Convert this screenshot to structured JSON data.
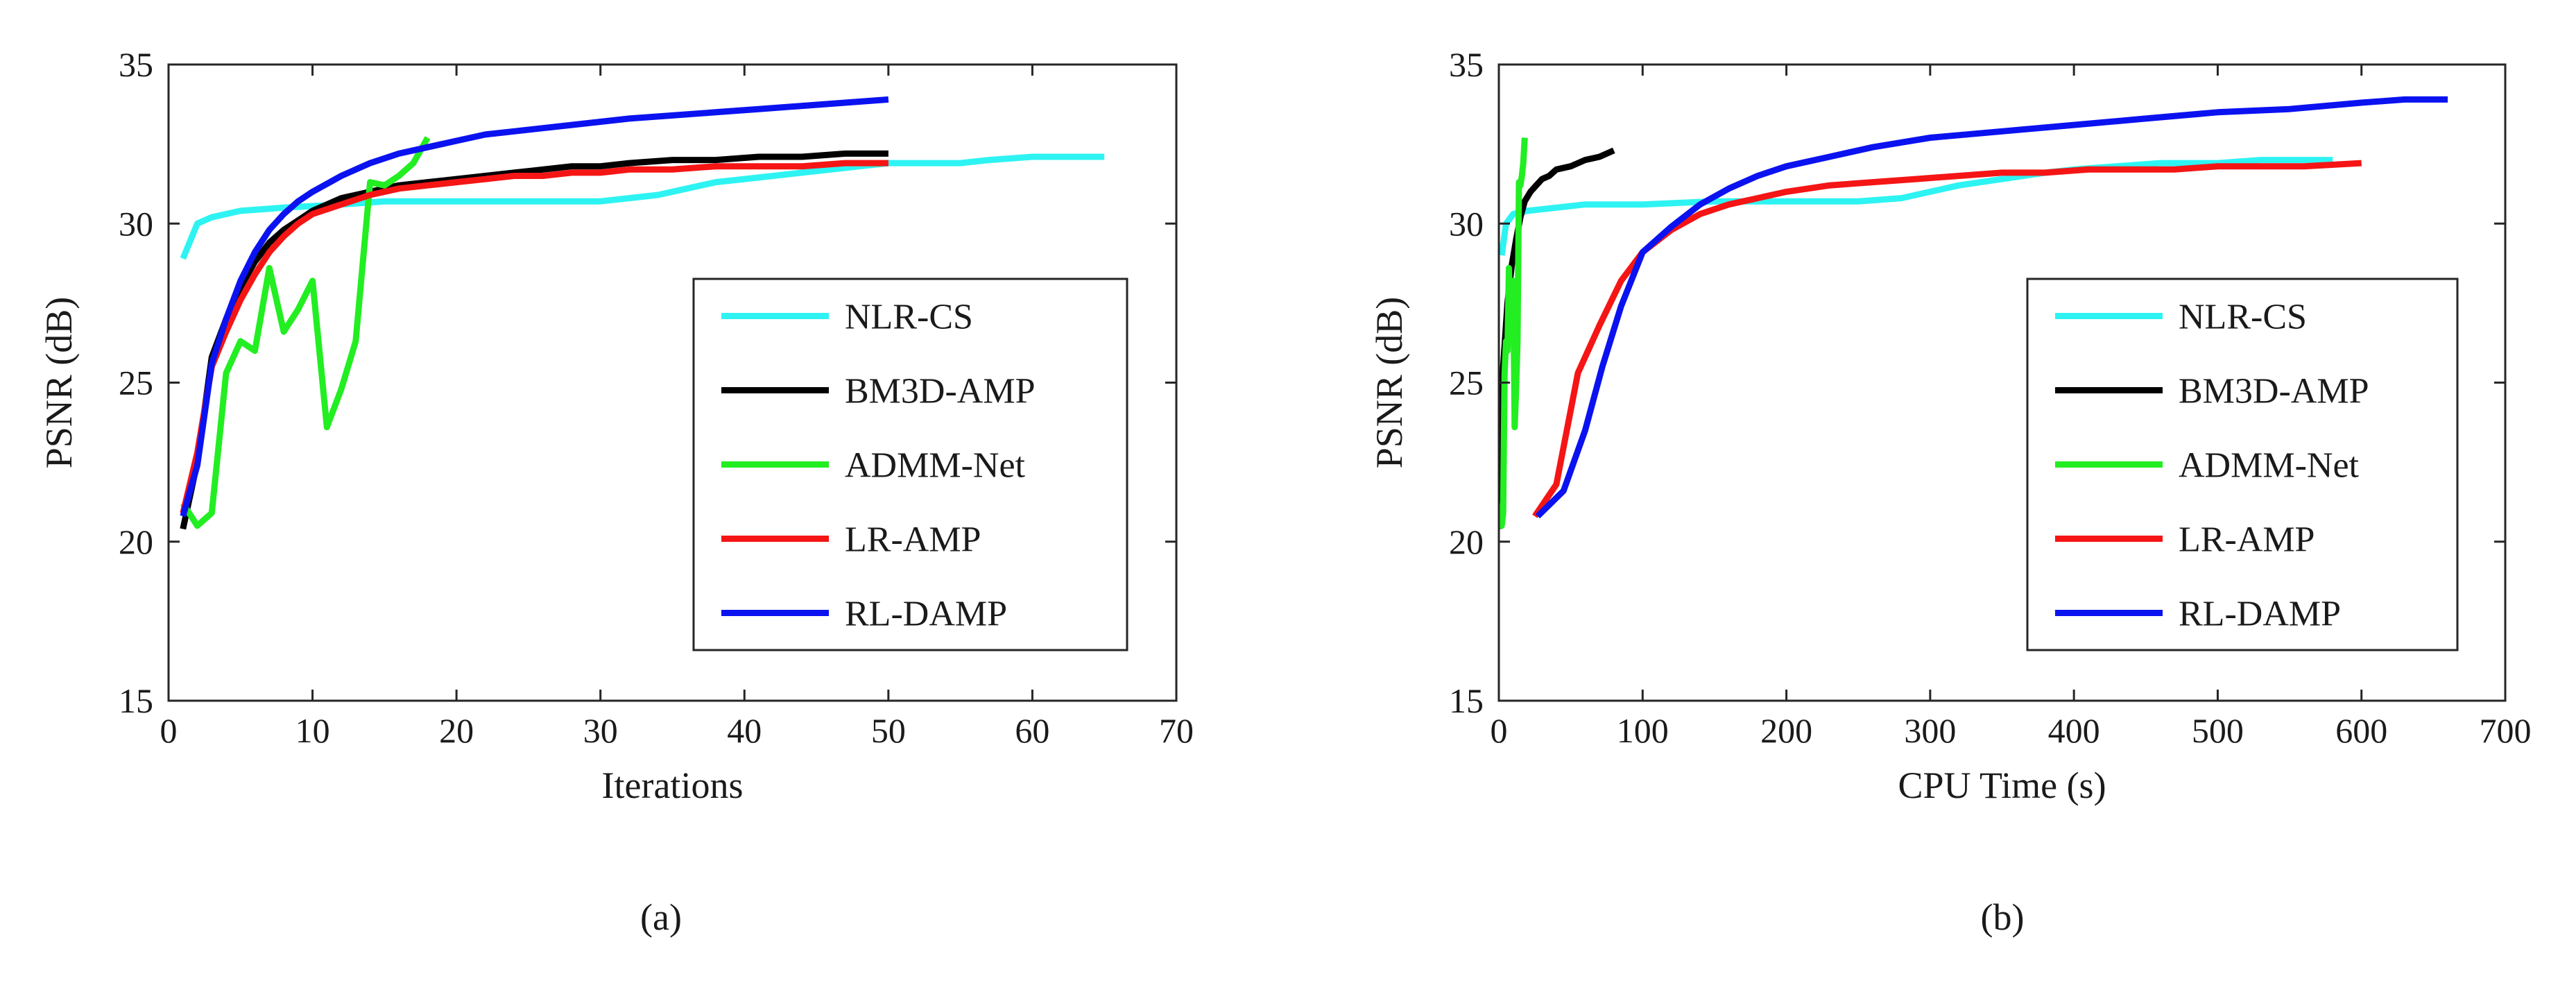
{
  "colors": {
    "nlr_cs": "#2ef3f3",
    "bm3d_amp": "#000000",
    "admm_net": "#22ee22",
    "lr_amp": "#f51515",
    "rl_damp": "#0b12f0",
    "axis": "#262626"
  },
  "chart_data": [
    {
      "type": "line",
      "caption": "(a)",
      "xlabel": "Iterations",
      "ylabel": "PSNR (dB)",
      "xlim": [
        0,
        70
      ],
      "ylim": [
        15,
        35
      ],
      "xticks": [
        "0",
        "10",
        "20",
        "30",
        "40",
        "50",
        "60",
        "70"
      ],
      "yticks": [
        "15",
        "20",
        "25",
        "30",
        "35"
      ],
      "legend_position": "right-center",
      "series": [
        {
          "name": "NLR-CS",
          "color_key": "nlr_cs",
          "x": [
            1,
            2,
            3,
            5,
            8,
            12,
            15,
            20,
            25,
            30,
            32,
            34,
            36,
            38,
            40,
            42,
            44,
            46,
            48,
            50,
            55,
            57,
            60,
            65
          ],
          "y": [
            28.9,
            30.0,
            30.2,
            30.4,
            30.5,
            30.6,
            30.7,
            30.7,
            30.7,
            30.7,
            30.8,
            30.9,
            31.1,
            31.3,
            31.4,
            31.5,
            31.6,
            31.7,
            31.8,
            31.9,
            31.9,
            32.0,
            32.1,
            32.1
          ]
        },
        {
          "name": "BM3D-AMP",
          "color_key": "bm3d_amp",
          "x": [
            1,
            2,
            3,
            4,
            5,
            6,
            7,
            8,
            9,
            10,
            12,
            14,
            16,
            18,
            20,
            22,
            24,
            26,
            28,
            30,
            32,
            35,
            38,
            41,
            44,
            47,
            50
          ],
          "y": [
            20.4,
            22.5,
            25.8,
            27.0,
            28.0,
            28.8,
            29.4,
            29.8,
            30.1,
            30.4,
            30.8,
            31.0,
            31.2,
            31.3,
            31.4,
            31.5,
            31.6,
            31.7,
            31.8,
            31.8,
            31.9,
            32.0,
            32.0,
            32.1,
            32.1,
            32.2,
            32.2
          ]
        },
        {
          "name": "ADMM-Net",
          "color_key": "admm_net",
          "x": [
            1,
            2,
            3,
            4,
            5,
            6,
            7,
            8,
            9,
            10,
            11,
            12,
            13,
            14,
            15,
            16,
            17,
            18
          ],
          "y": [
            21.2,
            20.5,
            20.9,
            25.3,
            26.3,
            26.0,
            28.6,
            26.6,
            27.3,
            28.2,
            23.6,
            24.8,
            26.3,
            31.3,
            31.2,
            31.5,
            31.9,
            32.7
          ]
        },
        {
          "name": "LR-AMP",
          "color_key": "lr_amp",
          "x": [
            1,
            2,
            3,
            4,
            5,
            6,
            7,
            8,
            9,
            10,
            12,
            14,
            16,
            18,
            20,
            22,
            24,
            26,
            28,
            30,
            32,
            35,
            38,
            41,
            44,
            47,
            50
          ],
          "y": [
            20.9,
            22.8,
            25.5,
            26.6,
            27.6,
            28.4,
            29.1,
            29.6,
            30.0,
            30.3,
            30.6,
            30.9,
            31.1,
            31.2,
            31.3,
            31.4,
            31.5,
            31.5,
            31.6,
            31.6,
            31.7,
            31.7,
            31.8,
            31.8,
            31.8,
            31.9,
            31.9
          ]
        },
        {
          "name": "RL-DAMP",
          "color_key": "rl_damp",
          "x": [
            1,
            2,
            3,
            4,
            5,
            6,
            7,
            8,
            9,
            10,
            12,
            14,
            16,
            18,
            20,
            22,
            24,
            26,
            28,
            30,
            32,
            35,
            38,
            41,
            44,
            47,
            50
          ],
          "y": [
            20.8,
            22.4,
            25.6,
            27.0,
            28.2,
            29.1,
            29.8,
            30.3,
            30.7,
            31.0,
            31.5,
            31.9,
            32.2,
            32.4,
            32.6,
            32.8,
            32.9,
            33.0,
            33.1,
            33.2,
            33.3,
            33.4,
            33.5,
            33.6,
            33.7,
            33.8,
            33.9
          ]
        }
      ]
    },
    {
      "type": "line",
      "caption": "(b)",
      "xlabel": "CPU Time (s)",
      "ylabel": "PSNR (dB)",
      "xlim": [
        0,
        700
      ],
      "ylim": [
        15,
        35
      ],
      "xticks": [
        "0",
        "100",
        "200",
        "300",
        "400",
        "500",
        "600",
        "700"
      ],
      "yticks": [
        "15",
        "20",
        "25",
        "30",
        "35"
      ],
      "legend_position": "right-center",
      "series": [
        {
          "name": "NLR-CS",
          "color_key": "nlr_cs",
          "x": [
            2,
            5,
            10,
            20,
            40,
            60,
            80,
            100,
            150,
            200,
            250,
            280,
            300,
            320,
            350,
            380,
            400,
            430,
            460,
            500,
            530,
            560,
            580
          ],
          "y": [
            29.0,
            30.0,
            30.3,
            30.4,
            30.5,
            30.6,
            30.6,
            30.6,
            30.7,
            30.7,
            30.7,
            30.8,
            31.0,
            31.2,
            31.4,
            31.6,
            31.7,
            31.8,
            31.9,
            31.9,
            32.0,
            32.0,
            32.0
          ]
        },
        {
          "name": "BM3D-AMP",
          "color_key": "bm3d_amp",
          "x": [
            0,
            3,
            6,
            9,
            12,
            15,
            18,
            22,
            26,
            30,
            35,
            40,
            50,
            60,
            70,
            80
          ],
          "y": [
            20.4,
            25.5,
            27.5,
            28.7,
            29.5,
            30.2,
            30.7,
            31.0,
            31.2,
            31.4,
            31.5,
            31.7,
            31.8,
            32.0,
            32.1,
            32.3
          ]
        },
        {
          "name": "ADMM-Net",
          "color_key": "admm_net",
          "x": [
            1,
            2,
            3,
            4,
            5,
            6,
            7,
            8,
            9,
            10,
            11,
            12,
            13,
            14,
            15,
            16,
            17,
            18
          ],
          "y": [
            21.2,
            20.5,
            20.9,
            25.3,
            26.3,
            26.0,
            28.6,
            26.6,
            27.3,
            28.2,
            23.6,
            24.8,
            26.3,
            31.3,
            31.2,
            31.5,
            31.9,
            32.7
          ]
        },
        {
          "name": "LR-AMP",
          "color_key": "lr_amp",
          "x": [
            25,
            40,
            55,
            70,
            85,
            100,
            120,
            140,
            160,
            180,
            200,
            230,
            260,
            290,
            320,
            350,
            380,
            410,
            440,
            470,
            500,
            530,
            560,
            600
          ],
          "y": [
            20.8,
            21.8,
            25.3,
            26.8,
            28.2,
            29.1,
            29.8,
            30.3,
            30.6,
            30.8,
            31.0,
            31.2,
            31.3,
            31.4,
            31.5,
            31.6,
            31.6,
            31.7,
            31.7,
            31.7,
            31.8,
            31.8,
            31.8,
            31.9
          ]
        },
        {
          "name": "RL-DAMP",
          "color_key": "rl_damp",
          "x": [
            27,
            45,
            60,
            72,
            85,
            100,
            120,
            140,
            160,
            180,
            200,
            230,
            260,
            300,
            350,
            400,
            450,
            500,
            550,
            600,
            630,
            660
          ],
          "y": [
            20.8,
            21.6,
            23.5,
            25.5,
            27.4,
            29.1,
            29.9,
            30.6,
            31.1,
            31.5,
            31.8,
            32.1,
            32.4,
            32.7,
            32.9,
            33.1,
            33.3,
            33.5,
            33.6,
            33.8,
            33.9,
            33.9
          ]
        }
      ]
    }
  ]
}
